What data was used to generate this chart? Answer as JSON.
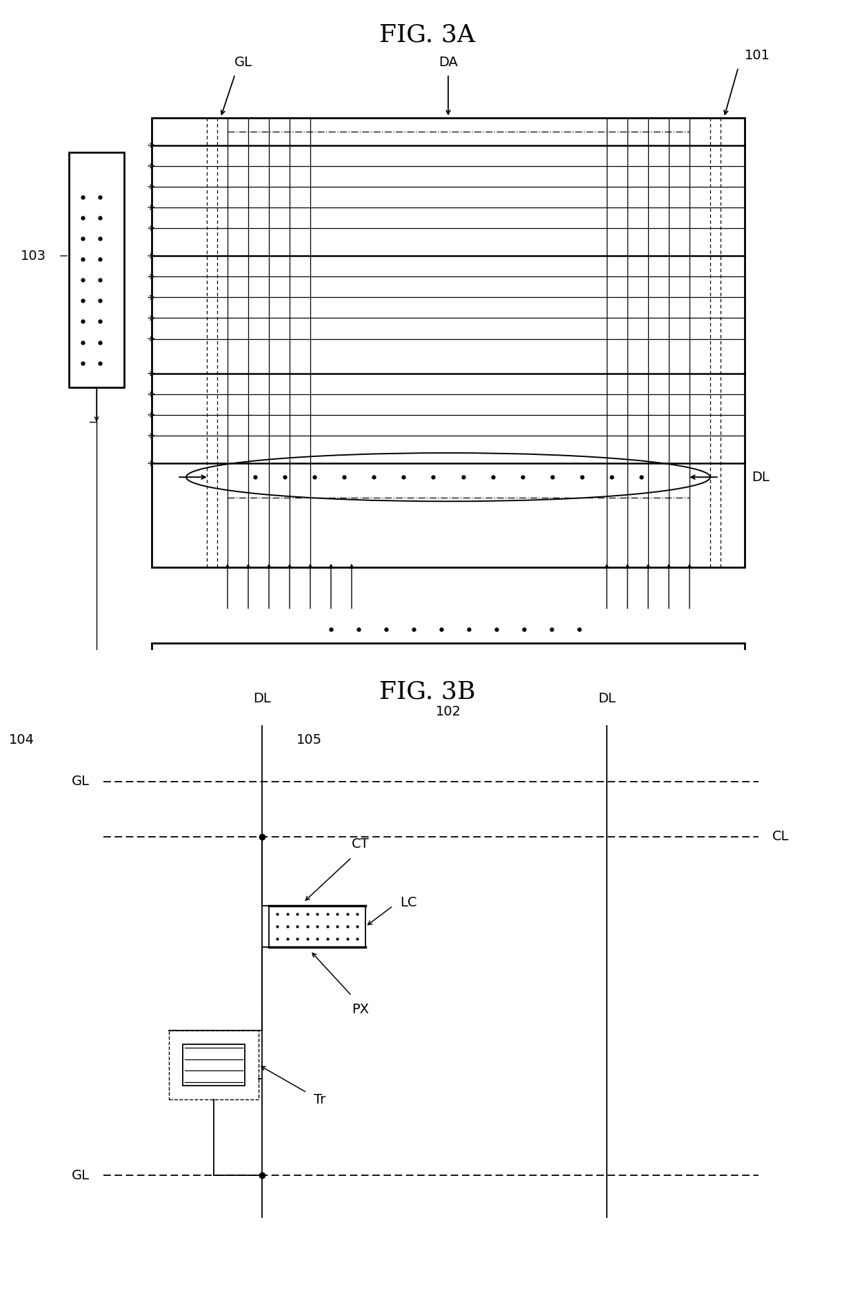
{
  "bg_color": "#ffffff",
  "fig3a_title": "FIG. 3A",
  "fig3b_title": "FIG. 3B",
  "label_101": "101",
  "label_102": "102",
  "label_103": "103",
  "label_104": "104",
  "label_105": "105",
  "label_GL": "GL",
  "label_DA": "DA",
  "label_DL": "DL",
  "label_CL": "CL",
  "label_CT": "CT",
  "label_LC": "LC",
  "label_PX": "PX",
  "label_Tr": "Tr",
  "line_color": "#000000"
}
